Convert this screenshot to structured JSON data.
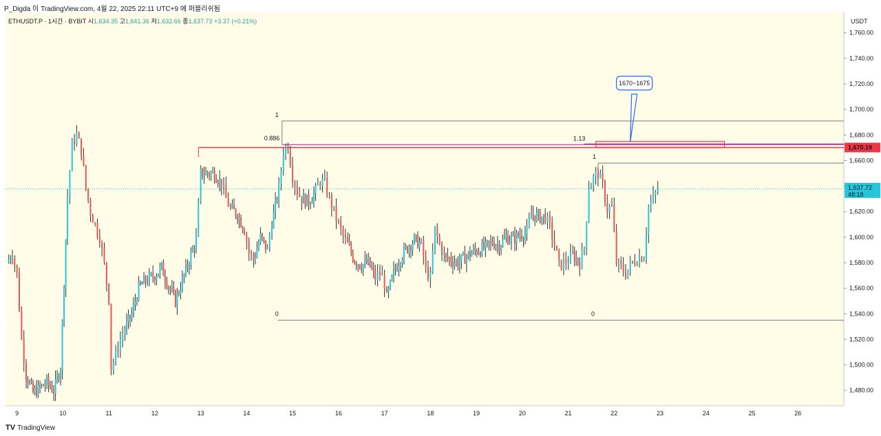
{
  "header": {
    "credit": "P_Digda 이 TradingView.com, 4월 22, 2025 22:11 UTC+9 에 퍼블리쉬됨"
  },
  "legend": {
    "symbol": "ETHUSDT.P · 1시간 · BYBIT",
    "open_label": "시",
    "open": "1,634.35",
    "high_label": "고",
    "high": "1,641.36",
    "low_label": "저",
    "low": "1,632.66",
    "close_label": "종",
    "close": "1,637.72",
    "change": "+3.37 (+0.21%)"
  },
  "footer": {
    "brand": "TradingView",
    "logo": "TV"
  },
  "colors": {
    "up": "#26c6da",
    "down": "#ef5350",
    "bg": "#fffde7",
    "level": "#f23645",
    "fib": "#9c27b0"
  },
  "chart_data": {
    "type": "candlestick",
    "title": "ETHUSDT.P 1H BYBIT",
    "currency": "USDT",
    "ylim": [
      1468,
      1776
    ],
    "y_ticks": [
      "1,480.00",
      "1,500.00",
      "1,520.00",
      "1,540.00",
      "1,560.00",
      "1,580.00",
      "1,600.00",
      "1,620.00",
      "1,640.00",
      "1,660.00",
      "1,680.00",
      "1,700.00",
      "1,720.00",
      "1,740.00",
      "1,760.00"
    ],
    "y_tick_values": [
      1480,
      1500,
      1520,
      1540,
      1560,
      1580,
      1600,
      1620,
      1640,
      1660,
      1680,
      1700,
      1720,
      1740,
      1760
    ],
    "x_ticks": [
      "9",
      "10",
      "11",
      "12",
      "13",
      "14",
      "15",
      "16",
      "17",
      "18",
      "19",
      "20",
      "21",
      "22",
      "23",
      "24",
      "25",
      "26"
    ],
    "x_tick_days": [
      9,
      10,
      11,
      12,
      13,
      14,
      15,
      16,
      17,
      18,
      19,
      20,
      21,
      22,
      23,
      24,
      25,
      26
    ],
    "x_range_days": [
      8.75,
      27
    ],
    "last_price": "1,637.72",
    "last_price_value": 1637.72,
    "countdown": "48:18",
    "level_price": "1,670.19",
    "level_value": 1670.19,
    "price_path": [
      [
        8.78,
        1580
      ],
      [
        8.9,
        1588
      ],
      [
        9.0,
        1570
      ],
      [
        9.1,
        1520
      ],
      [
        9.2,
        1492
      ],
      [
        9.35,
        1478
      ],
      [
        9.5,
        1482
      ],
      [
        9.65,
        1486
      ],
      [
        9.8,
        1480
      ],
      [
        9.95,
        1498
      ],
      [
        10.1,
        1632
      ],
      [
        10.2,
        1672
      ],
      [
        10.3,
        1680
      ],
      [
        10.4,
        1668
      ],
      [
        10.5,
        1638
      ],
      [
        10.6,
        1620
      ],
      [
        10.7,
        1610
      ],
      [
        10.8,
        1600
      ],
      [
        10.9,
        1578
      ],
      [
        11.0,
        1552
      ],
      [
        11.05,
        1498
      ],
      [
        11.15,
        1508
      ],
      [
        11.25,
        1520
      ],
      [
        11.35,
        1528
      ],
      [
        11.5,
        1540
      ],
      [
        11.65,
        1560
      ],
      [
        11.8,
        1566
      ],
      [
        12.0,
        1570
      ],
      [
        12.15,
        1576
      ],
      [
        12.3,
        1562
      ],
      [
        12.45,
        1550
      ],
      [
        12.6,
        1566
      ],
      [
        12.75,
        1582
      ],
      [
        12.9,
        1598
      ],
      [
        13.0,
        1650
      ],
      [
        13.15,
        1650
      ],
      [
        13.3,
        1650
      ],
      [
        13.45,
        1642
      ],
      [
        13.55,
        1630
      ],
      [
        13.65,
        1622
      ],
      [
        13.8,
        1618
      ],
      [
        13.95,
        1606
      ],
      [
        14.05,
        1588
      ],
      [
        14.15,
        1582
      ],
      [
        14.3,
        1600
      ],
      [
        14.45,
        1590
      ],
      [
        14.55,
        1612
      ],
      [
        14.7,
        1638
      ],
      [
        14.8,
        1668
      ],
      [
        14.9,
        1672
      ],
      [
        15.0,
        1648
      ],
      [
        15.1,
        1636
      ],
      [
        15.2,
        1630
      ],
      [
        15.35,
        1628
      ],
      [
        15.5,
        1636
      ],
      [
        15.6,
        1644
      ],
      [
        15.7,
        1642
      ],
      [
        15.8,
        1630
      ],
      [
        15.9,
        1620
      ],
      [
        16.0,
        1610
      ],
      [
        16.1,
        1600
      ],
      [
        16.2,
        1594
      ],
      [
        16.35,
        1582
      ],
      [
        16.5,
        1578
      ],
      [
        16.65,
        1580
      ],
      [
        16.8,
        1568
      ],
      [
        16.9,
        1572
      ],
      [
        17.0,
        1564
      ],
      [
        17.05,
        1552
      ],
      [
        17.2,
        1572
      ],
      [
        17.35,
        1584
      ],
      [
        17.5,
        1592
      ],
      [
        17.65,
        1598
      ],
      [
        17.8,
        1594
      ],
      [
        17.9,
        1574
      ],
      [
        18.0,
        1568
      ],
      [
        18.1,
        1606
      ],
      [
        18.2,
        1594
      ],
      [
        18.3,
        1585
      ],
      [
        18.45,
        1582
      ],
      [
        18.6,
        1580
      ],
      [
        18.75,
        1584
      ],
      [
        18.9,
        1588
      ],
      [
        19.05,
        1590
      ],
      [
        19.2,
        1592
      ],
      [
        19.35,
        1596
      ],
      [
        19.5,
        1594
      ],
      [
        19.65,
        1600
      ],
      [
        19.8,
        1598
      ],
      [
        19.95,
        1602
      ],
      [
        20.1,
        1604
      ],
      [
        20.2,
        1618
      ],
      [
        20.35,
        1616
      ],
      [
        20.5,
        1616
      ],
      [
        20.6,
        1608
      ],
      [
        20.7,
        1594
      ],
      [
        20.8,
        1578
      ],
      [
        20.9,
        1580
      ],
      [
        21.0,
        1582
      ],
      [
        21.1,
        1586
      ],
      [
        21.25,
        1580
      ],
      [
        21.35,
        1592
      ],
      [
        21.45,
        1640
      ],
      [
        21.55,
        1646
      ],
      [
        21.65,
        1650
      ],
      [
        21.75,
        1640
      ],
      [
        21.85,
        1622
      ],
      [
        21.95,
        1624
      ],
      [
        22.05,
        1580
      ],
      [
        22.15,
        1576
      ],
      [
        22.25,
        1572
      ],
      [
        22.35,
        1578
      ],
      [
        22.45,
        1582
      ],
      [
        22.55,
        1584
      ],
      [
        22.65,
        1586
      ],
      [
        22.75,
        1624
      ],
      [
        22.85,
        1630
      ],
      [
        22.95,
        1637.72
      ]
    ],
    "annotations": {
      "fib_left": {
        "x0": 14.77,
        "x1": 27,
        "top": 1691,
        "bottom": 1535,
        "label_top": "1",
        "label_bottom": "0",
        "mid_value": 1672.5,
        "mid_label": "0.886"
      },
      "fib_right": {
        "x0": 21.65,
        "x1": 27,
        "top": 1658,
        "bottom": 1535,
        "label_top": "1",
        "label_bottom": "0",
        "ext_value": 1673,
        "ext_label": "1.13",
        "ext_x0": 21.35
      },
      "resistance_line": {
        "x0": 12.95,
        "x1": 27,
        "value": 1670.19
      },
      "target_box": {
        "x0": 21.6,
        "x1": 24.4,
        "top": 1675,
        "bottom": 1670
      },
      "callout": {
        "text": "1670~1675",
        "anchor_x": 22.35,
        "anchor_y": 1673
      }
    }
  }
}
